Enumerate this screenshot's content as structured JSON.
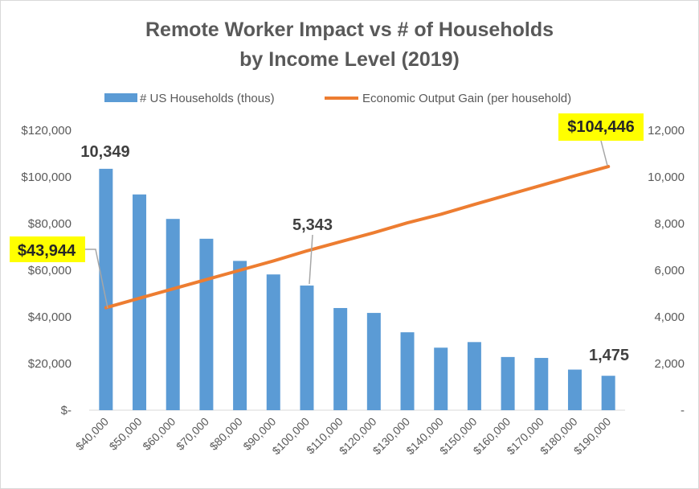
{
  "chart_data": {
    "type": "bar+line",
    "title_line1": "Remote Worker Impact vs # of Households",
    "title_line2": "by Income Level (2019)",
    "categories": [
      "$40,000",
      "$50,000",
      "$60,000",
      "$70,000",
      "$80,000",
      "$90,000",
      "$100,000",
      "$110,000",
      "$120,000",
      "$130,000",
      "$140,000",
      "$150,000",
      "$160,000",
      "$170,000",
      "$180,000",
      "$190,000"
    ],
    "series": [
      {
        "name": "# US Households (thous)",
        "type": "bar",
        "axis": "right",
        "color": "#5b9bd5",
        "values": [
          10349,
          9250,
          8200,
          7350,
          6400,
          5820,
          5343,
          4380,
          4170,
          3340,
          2680,
          2920,
          2280,
          2240,
          1740,
          1475
        ]
      },
      {
        "name": "Economic Output Gain (per household)",
        "type": "line",
        "axis": "left",
        "color": "#ed7d31",
        "values": [
          43944,
          48000,
          52000,
          56000,
          60000,
          64000,
          68300,
          72200,
          76100,
          80300,
          84000,
          88200,
          92300,
          96400,
          100500,
          104446
        ]
      }
    ],
    "left_axis": {
      "min": 0,
      "max": 120000,
      "ticks": [
        "$-",
        "$20,000",
        "$40,000",
        "$60,000",
        "$80,000",
        "$100,000",
        "$120,000"
      ]
    },
    "right_axis": {
      "min": 0,
      "max": 12000,
      "ticks": [
        "-",
        "2,000",
        "4,000",
        "6,000",
        "8,000",
        "10,000",
        "12,000"
      ]
    },
    "legend_position": "top",
    "grid": false,
    "annotations": [
      {
        "text": "10,349",
        "target_series": 0,
        "target_index": 0,
        "style": "dark"
      },
      {
        "text": "5,343",
        "target_series": 0,
        "target_index": 6,
        "style": "dark"
      },
      {
        "text": "1,475",
        "target_series": 0,
        "target_index": 15,
        "style": "dark"
      },
      {
        "text": "$43,944",
        "target_series": 1,
        "target_index": 0,
        "style": "highlight"
      },
      {
        "text": "$104,446",
        "target_series": 1,
        "target_index": 15,
        "style": "highlight"
      }
    ],
    "highlight_color": "#ffff00"
  }
}
